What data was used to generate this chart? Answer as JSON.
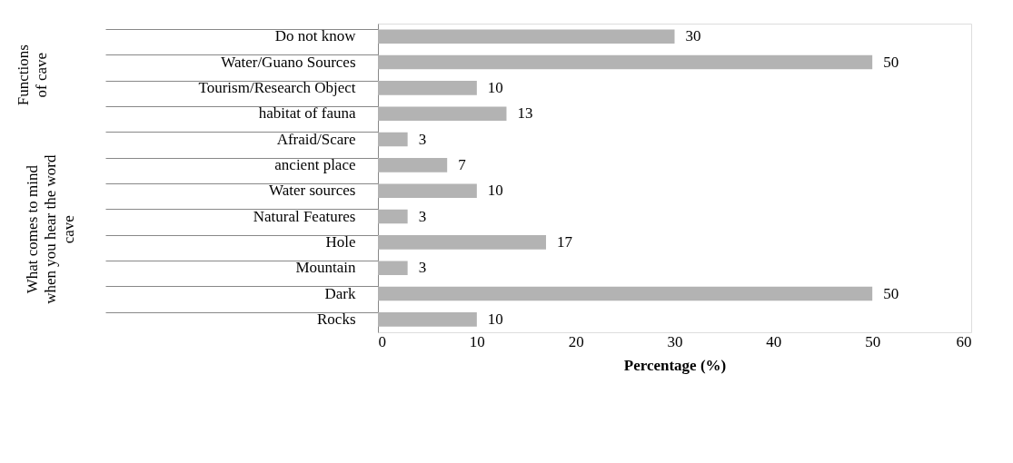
{
  "chart_data": {
    "type": "bar",
    "orientation": "horizontal",
    "categories": [
      "Do not know",
      "Water/Guano Sources",
      "Tourism/Research Object",
      "habitat of fauna",
      "Afraid/Scare",
      "ancient place",
      "Water sources",
      "Natural Features",
      "Hole",
      "Mountain",
      "Dark",
      "Rocks"
    ],
    "values": [
      30,
      50,
      10,
      13,
      3,
      7,
      10,
      3,
      17,
      3,
      50,
      10
    ],
    "color": "#b3b3b3",
    "xlim": [
      0,
      60
    ],
    "xticks": [
      0,
      10,
      20,
      30,
      40,
      50,
      60
    ],
    "xlabel": "Percentage  (%)",
    "data_labels": true,
    "grid": false,
    "annotations": [
      "Functions of cave",
      "What comes to mind when you hear the word cave"
    ]
  }
}
